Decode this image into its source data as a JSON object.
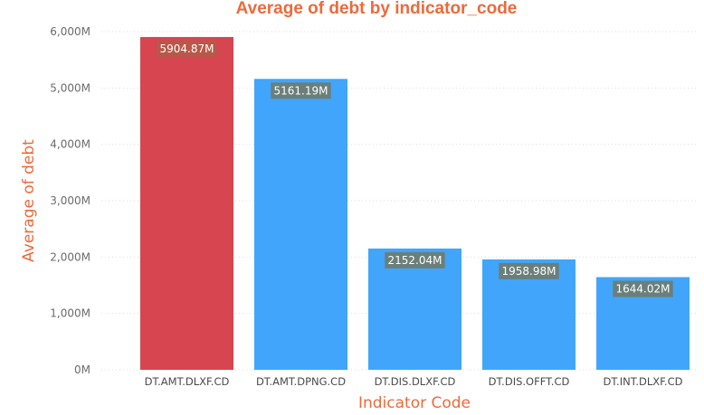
{
  "colors": {
    "accent": "#EC6A3C",
    "bar_highlight": "#D64550",
    "bar_default": "#41A5FB",
    "label_box": "#6B7F7A",
    "label_box_highlight": "#B85848",
    "grid": "#DDDDDD"
  },
  "chart_data": {
    "type": "bar",
    "title": "Average of debt by indicator_code",
    "xlabel": "Indicator Code",
    "ylabel": "Average of debt",
    "categories": [
      "DT.AMT.DLXF.CD",
      "DT.AMT.DPNG.CD",
      "DT.DIS.DLXF.CD",
      "DT.DIS.OFFT.CD",
      "DT.INT.DLXF.CD"
    ],
    "values": [
      5904.87,
      5161.19,
      2152.04,
      1958.98,
      1644.02
    ],
    "data_labels": [
      "5904.87M",
      "5161.19M",
      "2152.04M",
      "1958.98M",
      "1644.02M"
    ],
    "highlighted_index": 0,
    "ylim": [
      0,
      6000
    ],
    "yticks": [
      0,
      1000,
      2000,
      3000,
      4000,
      5000,
      6000
    ],
    "ytick_labels": [
      "0M",
      "1,000M",
      "2,000M",
      "3,000M",
      "4,000M",
      "5,000M",
      "6,000M"
    ],
    "grid": true,
    "legend": "none"
  }
}
